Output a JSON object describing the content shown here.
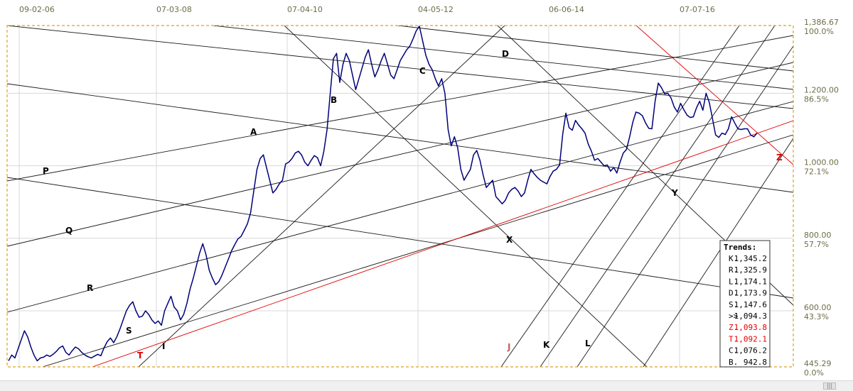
{
  "chart_data": {
    "type": "line",
    "title": "",
    "x_ticks": [
      "09-02-06",
      "07-03-08",
      "07-04-10",
      "04-05-12",
      "06-06-14",
      "07-07-16"
    ],
    "y_axis": [
      {
        "price": "1,386.67",
        "pct": "100.0%",
        "value": 1386.67
      },
      {
        "price": "1,200.00",
        "pct": "86.5%",
        "value": 1200.0
      },
      {
        "price": "1,000.00",
        "pct": "72.1%",
        "value": 1000.0
      },
      {
        "price": "800.00",
        "pct": "57.7%",
        "value": 800.0
      },
      {
        "price": "600.00",
        "pct": "43.3%",
        "value": 600.0
      },
      {
        "price": "445.29",
        "pct": "0.0%",
        "value": 445.29
      }
    ],
    "ylim": [
      445.29,
      1386.67
    ],
    "series": [
      {
        "values": [
          462,
          478,
          470,
          495,
          520,
          545,
          528,
          500,
          478,
          462,
          470,
          472,
          478,
          474,
          480,
          488,
          498,
          503,
          485,
          478,
          490,
          500,
          495,
          485,
          478,
          473,
          470,
          475,
          480,
          476,
          498,
          515,
          525,
          512,
          528,
          550,
          575,
          600,
          615,
          625,
          600,
          582,
          585,
          600,
          590,
          575,
          565,
          572,
          560,
          600,
          620,
          640,
          610,
          600,
          575,
          590,
          620,
          660,
          690,
          725,
          760,
          785,
          755,
          712,
          690,
          672,
          680,
          698,
          720,
          742,
          765,
          782,
          798,
          805,
          822,
          840,
          870,
          930,
          990,
          1020,
          1030,
          995,
          960,
          925,
          935,
          950,
          960,
          1005,
          1010,
          1020,
          1035,
          1040,
          1030,
          1010,
          1000,
          1015,
          1028,
          1022,
          1000,
          1040,
          1100,
          1200,
          1295,
          1310,
          1230,
          1280,
          1310,
          1290,
          1250,
          1210,
          1240,
          1270,
          1300,
          1320,
          1280,
          1245,
          1265,
          1290,
          1310,
          1280,
          1250,
          1240,
          1265,
          1290,
          1305,
          1320,
          1330,
          1350,
          1372,
          1385,
          1345,
          1305,
          1280,
          1265,
          1240,
          1220,
          1240,
          1200,
          1100,
          1055,
          1080,
          1050,
          990,
          960,
          975,
          990,
          1030,
          1042,
          1015,
          975,
          940,
          950,
          960,
          915,
          905,
          895,
          905,
          925,
          935,
          940,
          930,
          915,
          925,
          960,
          990,
          978,
          968,
          960,
          955,
          950,
          970,
          985,
          990,
          1002,
          1088,
          1145,
          1105,
          1098,
          1125,
          1112,
          1102,
          1090,
          1060,
          1040,
          1015,
          1020,
          1010,
          1000,
          1002,
          985,
          995,
          980,
          1010,
          1035,
          1045,
          1080,
          1120,
          1148,
          1145,
          1138,
          1118,
          1103,
          1102,
          1178,
          1228,
          1215,
          1198,
          1200,
          1187,
          1162,
          1148,
          1172,
          1155,
          1140,
          1133,
          1135,
          1160,
          1178,
          1153,
          1200,
          1175,
          1130,
          1085,
          1078,
          1090,
          1086,
          1102,
          1135,
          1118,
          1102,
          1100,
          1102,
          1102,
          1085,
          1080,
          1090
        ]
      }
    ],
    "trend_letters": [
      {
        "label": "A",
        "color": "#000000"
      },
      {
        "label": "B",
        "color": "#000000"
      },
      {
        "label": "C",
        "color": "#000000"
      },
      {
        "label": "D",
        "color": "#000000"
      },
      {
        "label": "P",
        "color": "#000000"
      },
      {
        "label": "Q",
        "color": "#000000"
      },
      {
        "label": "R",
        "color": "#000000"
      },
      {
        "label": "S",
        "color": "#000000"
      },
      {
        "label": "I",
        "color": "#000000"
      },
      {
        "label": "T",
        "color": "#e00000"
      },
      {
        "label": "X",
        "color": "#000000"
      },
      {
        "label": "Y",
        "color": "#000000"
      },
      {
        "label": "Z",
        "color": "#e00000"
      },
      {
        "label": "J",
        "color": "#c06060"
      },
      {
        "label": "K",
        "color": "#000000"
      },
      {
        "label": "L",
        "color": "#000000"
      }
    ],
    "legend": {
      "title": "Trends:",
      "rows": [
        {
          "key": "K.",
          "value": "1,345.2",
          "color": "#000000"
        },
        {
          "key": "R.",
          "value": "1,325.9",
          "color": "#000000"
        },
        {
          "key": "L.",
          "value": "1,174.1",
          "color": "#000000"
        },
        {
          "key": "D.",
          "value": "1,173.9",
          "color": "#000000"
        },
        {
          "key": "S.",
          "value": "1,147.6",
          "color": "#000000"
        },
        {
          "key": ">>",
          "value": "1,094.3",
          "color": "#000000"
        },
        {
          "key": "Z.",
          "value": "1,093.8",
          "color": "#e00000"
        },
        {
          "key": "T.",
          "value": "1,092.1",
          "color": "#e00000"
        },
        {
          "key": "C.",
          "value": "1,076.2",
          "color": "#000000"
        },
        {
          "key": "B.",
          "value": "942.8",
          "color": "#000000"
        }
      ]
    },
    "colors": {
      "price": "#00007a",
      "trend": "#1a1a1a",
      "red_trend": "#e00000",
      "frame": "#e0a020",
      "grid": "#d8d8d8",
      "axis_text": "#6e6e4a"
    }
  }
}
